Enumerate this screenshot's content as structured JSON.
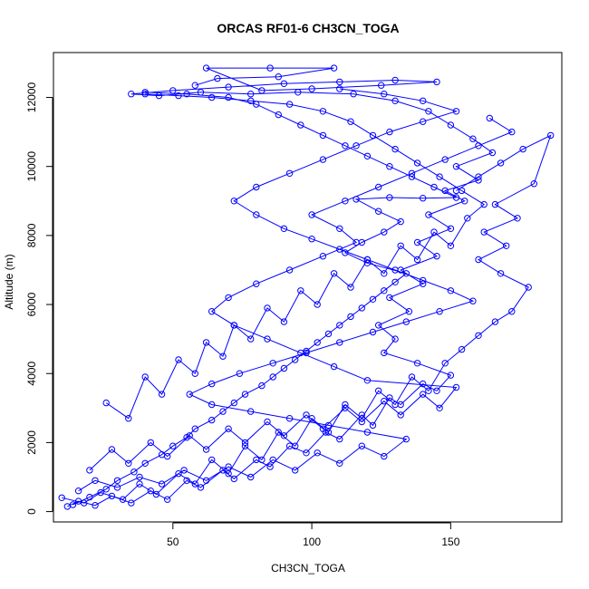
{
  "chart_data": {
    "type": "scatter",
    "title": "ORCAS RF01-6 CH3CN_TOGA",
    "xlabel": "CH3CN_TOGA",
    "ylabel": "Altitude (m)",
    "xlim": [
      7,
      190
    ],
    "ylim": [
      -300,
      13300
    ],
    "x_ticks": [
      50,
      100,
      150
    ],
    "y_ticks": [
      0,
      2000,
      4000,
      6000,
      8000,
      10000,
      12000
    ],
    "color": "#0000ff",
    "grid": false,
    "legend": "none",
    "series": [
      {
        "values": [
          [
            12,
            150
          ],
          [
            16,
            300
          ],
          [
            22,
            180
          ],
          [
            28,
            450
          ],
          [
            35,
            250
          ],
          [
            42,
            600
          ],
          [
            48,
            350
          ],
          [
            55,
            900
          ],
          [
            60,
            700
          ],
          [
            68,
            1200
          ],
          [
            72,
            950
          ],
          [
            80,
            1500
          ],
          [
            85,
            1300
          ],
          [
            92,
            1900
          ],
          [
            98,
            1700
          ],
          [
            105,
            2300
          ],
          [
            110,
            2100
          ],
          [
            118,
            2800
          ],
          [
            122,
            2500
          ],
          [
            128,
            3300
          ],
          [
            132,
            3100
          ],
          [
            140,
            3700
          ],
          [
            145,
            3500
          ],
          [
            150,
            3950
          ],
          [
            138,
            4300
          ],
          [
            126,
            4600
          ],
          [
            130,
            5000
          ],
          [
            124,
            5400
          ],
          [
            135,
            5800
          ],
          [
            128,
            6200
          ],
          [
            140,
            6600
          ],
          [
            132,
            7000
          ],
          [
            145,
            7400
          ],
          [
            138,
            7800
          ],
          [
            150,
            8200
          ],
          [
            142,
            8600
          ],
          [
            155,
            9000
          ],
          [
            148,
            9300
          ],
          [
            160,
            9600
          ],
          [
            152,
            10000
          ],
          [
            165,
            10400
          ],
          [
            158,
            10800
          ],
          [
            150,
            11200
          ],
          [
            142,
            11600
          ],
          [
            130,
            11900
          ],
          [
            115,
            12100
          ],
          [
            95,
            12150
          ],
          [
            78,
            12100
          ],
          [
            60,
            12150
          ],
          [
            45,
            12050
          ],
          [
            35,
            12100
          ],
          [
            50,
            12200
          ],
          [
            70,
            12300
          ],
          [
            90,
            12400
          ],
          [
            110,
            12450
          ],
          [
            130,
            12500
          ],
          [
            145,
            12450
          ],
          [
            125,
            12350
          ],
          [
            100,
            12250
          ],
          [
            82,
            12200
          ],
          [
            62,
            12850
          ],
          [
            85,
            12850
          ],
          [
            108,
            12850
          ],
          [
            88,
            12600
          ],
          [
            66,
            12550
          ],
          [
            58,
            12350
          ]
        ]
      },
      {
        "values": [
          [
            14,
            200
          ],
          [
            20,
            420
          ],
          [
            26,
            650
          ],
          [
            30,
            900
          ],
          [
            36,
            1150
          ],
          [
            40,
            1400
          ],
          [
            46,
            1650
          ],
          [
            50,
            1900
          ],
          [
            55,
            2150
          ],
          [
            58,
            2400
          ],
          [
            64,
            2650
          ],
          [
            68,
            2900
          ],
          [
            72,
            3150
          ],
          [
            76,
            3400
          ],
          [
            82,
            3650
          ],
          [
            86,
            3900
          ],
          [
            90,
            4150
          ],
          [
            94,
            4400
          ],
          [
            98,
            4650
          ],
          [
            102,
            4900
          ],
          [
            106,
            5150
          ],
          [
            110,
            5400
          ],
          [
            114,
            5650
          ],
          [
            118,
            5900
          ],
          [
            122,
            6150
          ],
          [
            126,
            6400
          ],
          [
            130,
            6650
          ],
          [
            134,
            6900
          ],
          [
            120,
            7200
          ],
          [
            112,
            7500
          ],
          [
            118,
            7800
          ],
          [
            126,
            8100
          ],
          [
            132,
            8400
          ],
          [
            124,
            8700
          ],
          [
            116,
            9050
          ],
          [
            128,
            9100
          ],
          [
            140,
            9080
          ],
          [
            152,
            9100
          ],
          [
            144,
            9400
          ],
          [
            136,
            9700
          ],
          [
            128,
            10000
          ],
          [
            120,
            10300
          ],
          [
            112,
            10600
          ],
          [
            104,
            10900
          ],
          [
            96,
            11200
          ],
          [
            88,
            11500
          ],
          [
            80,
            11800
          ],
          [
            70,
            12000
          ],
          [
            55,
            12100
          ],
          [
            40,
            12150
          ]
        ]
      },
      {
        "values": [
          [
            10,
            400
          ],
          [
            18,
            250
          ],
          [
            24,
            550
          ],
          [
            32,
            350
          ],
          [
            38,
            800
          ],
          [
            44,
            500
          ],
          [
            52,
            1100
          ],
          [
            58,
            800
          ],
          [
            64,
            1500
          ],
          [
            70,
            1100
          ],
          [
            76,
            1900
          ],
          [
            82,
            1500
          ],
          [
            88,
            2300
          ],
          [
            94,
            1900
          ],
          [
            100,
            2700
          ],
          [
            106,
            2300
          ],
          [
            112,
            3100
          ],
          [
            118,
            2700
          ],
          [
            124,
            3500
          ],
          [
            130,
            3100
          ],
          [
            136,
            3900
          ],
          [
            142,
            3500
          ],
          [
            148,
            4300
          ],
          [
            154,
            4700
          ],
          [
            160,
            5100
          ],
          [
            166,
            5500
          ],
          [
            172,
            5800
          ],
          [
            178,
            6500
          ],
          [
            168,
            6900
          ],
          [
            160,
            7300
          ],
          [
            170,
            7700
          ],
          [
            162,
            8100
          ],
          [
            174,
            8500
          ],
          [
            166,
            8900
          ],
          [
            180,
            9500
          ],
          [
            186,
            10900
          ],
          [
            176,
            10500
          ],
          [
            168,
            10100
          ],
          [
            160,
            9700
          ],
          [
            152,
            9300
          ]
        ]
      },
      {
        "values": [
          [
            26,
            3150
          ],
          [
            34,
            2700
          ],
          [
            40,
            3900
          ],
          [
            46,
            3400
          ],
          [
            52,
            4400
          ],
          [
            58,
            4000
          ],
          [
            62,
            4900
          ],
          [
            68,
            4500
          ],
          [
            72,
            5400
          ],
          [
            78,
            5000
          ],
          [
            84,
            5900
          ],
          [
            90,
            5500
          ],
          [
            96,
            6400
          ],
          [
            102,
            6000
          ],
          [
            108,
            6900
          ],
          [
            114,
            6500
          ],
          [
            120,
            7300
          ],
          [
            126,
            6900
          ],
          [
            132,
            7700
          ],
          [
            138,
            7300
          ],
          [
            144,
            8100
          ],
          [
            150,
            7700
          ],
          [
            156,
            8500
          ],
          [
            162,
            8900
          ],
          [
            154,
            9300
          ],
          [
            146,
            9700
          ],
          [
            138,
            10100
          ],
          [
            130,
            10500
          ],
          [
            122,
            10900
          ],
          [
            114,
            11300
          ],
          [
            104,
            11600
          ],
          [
            92,
            11800
          ],
          [
            78,
            11900
          ],
          [
            64,
            12000
          ],
          [
            52,
            12050
          ],
          [
            40,
            12100
          ]
        ]
      },
      {
        "values": [
          [
            20,
            1200
          ],
          [
            28,
            1800
          ],
          [
            34,
            1400
          ],
          [
            42,
            2000
          ],
          [
            48,
            1600
          ],
          [
            56,
            2200
          ],
          [
            62,
            1800
          ],
          [
            70,
            2400
          ],
          [
            76,
            2000
          ],
          [
            84,
            2600
          ],
          [
            90,
            2200
          ],
          [
            98,
            2800
          ],
          [
            104,
            2400
          ],
          [
            112,
            3000
          ],
          [
            118,
            2600
          ],
          [
            126,
            3200
          ],
          [
            132,
            2800
          ],
          [
            140,
            3400
          ],
          [
            146,
            3000
          ],
          [
            152,
            3600
          ],
          [
            120,
            3800
          ],
          [
            108,
            4200
          ],
          [
            96,
            4600
          ],
          [
            84,
            5000
          ],
          [
            72,
            5400
          ],
          [
            64,
            5800
          ],
          [
            70,
            6200
          ],
          [
            80,
            6600
          ],
          [
            92,
            7000
          ],
          [
            104,
            7400
          ],
          [
            116,
            7800
          ],
          [
            110,
            8200
          ],
          [
            100,
            8600
          ],
          [
            112,
            9000
          ],
          [
            124,
            9400
          ],
          [
            136,
            9800
          ],
          [
            148,
            10200
          ],
          [
            160,
            10600
          ],
          [
            172,
            11000
          ],
          [
            164,
            11400
          ]
        ]
      },
      {
        "values": [
          [
            16,
            600
          ],
          [
            22,
            900
          ],
          [
            30,
            700
          ],
          [
            38,
            1000
          ],
          [
            46,
            800
          ],
          [
            54,
            1200
          ],
          [
            62,
            900
          ],
          [
            70,
            1300
          ],
          [
            78,
            1000
          ],
          [
            86,
            1500
          ],
          [
            94,
            1200
          ],
          [
            102,
            1700
          ],
          [
            110,
            1400
          ],
          [
            118,
            1900
          ],
          [
            126,
            1600
          ],
          [
            134,
            2100
          ],
          [
            120,
            2300
          ],
          [
            106,
            2500
          ],
          [
            92,
            2700
          ],
          [
            78,
            2900
          ],
          [
            64,
            3100
          ],
          [
            56,
            3400
          ],
          [
            64,
            3700
          ],
          [
            74,
            4000
          ],
          [
            86,
            4300
          ],
          [
            98,
            4600
          ],
          [
            110,
            4900
          ],
          [
            122,
            5200
          ],
          [
            134,
            5500
          ],
          [
            146,
            5800
          ],
          [
            158,
            6100
          ],
          [
            150,
            6400
          ],
          [
            140,
            6700
          ],
          [
            130,
            7000
          ],
          [
            120,
            7300
          ],
          [
            110,
            7600
          ],
          [
            100,
            7900
          ],
          [
            90,
            8200
          ],
          [
            80,
            8600
          ],
          [
            72,
            9000
          ],
          [
            80,
            9400
          ],
          [
            92,
            9800
          ],
          [
            104,
            10200
          ],
          [
            116,
            10600
          ],
          [
            128,
            11000
          ],
          [
            140,
            11300
          ],
          [
            152,
            11600
          ],
          [
            140,
            11900
          ],
          [
            126,
            12100
          ],
          [
            110,
            12250
          ]
        ]
      }
    ]
  }
}
